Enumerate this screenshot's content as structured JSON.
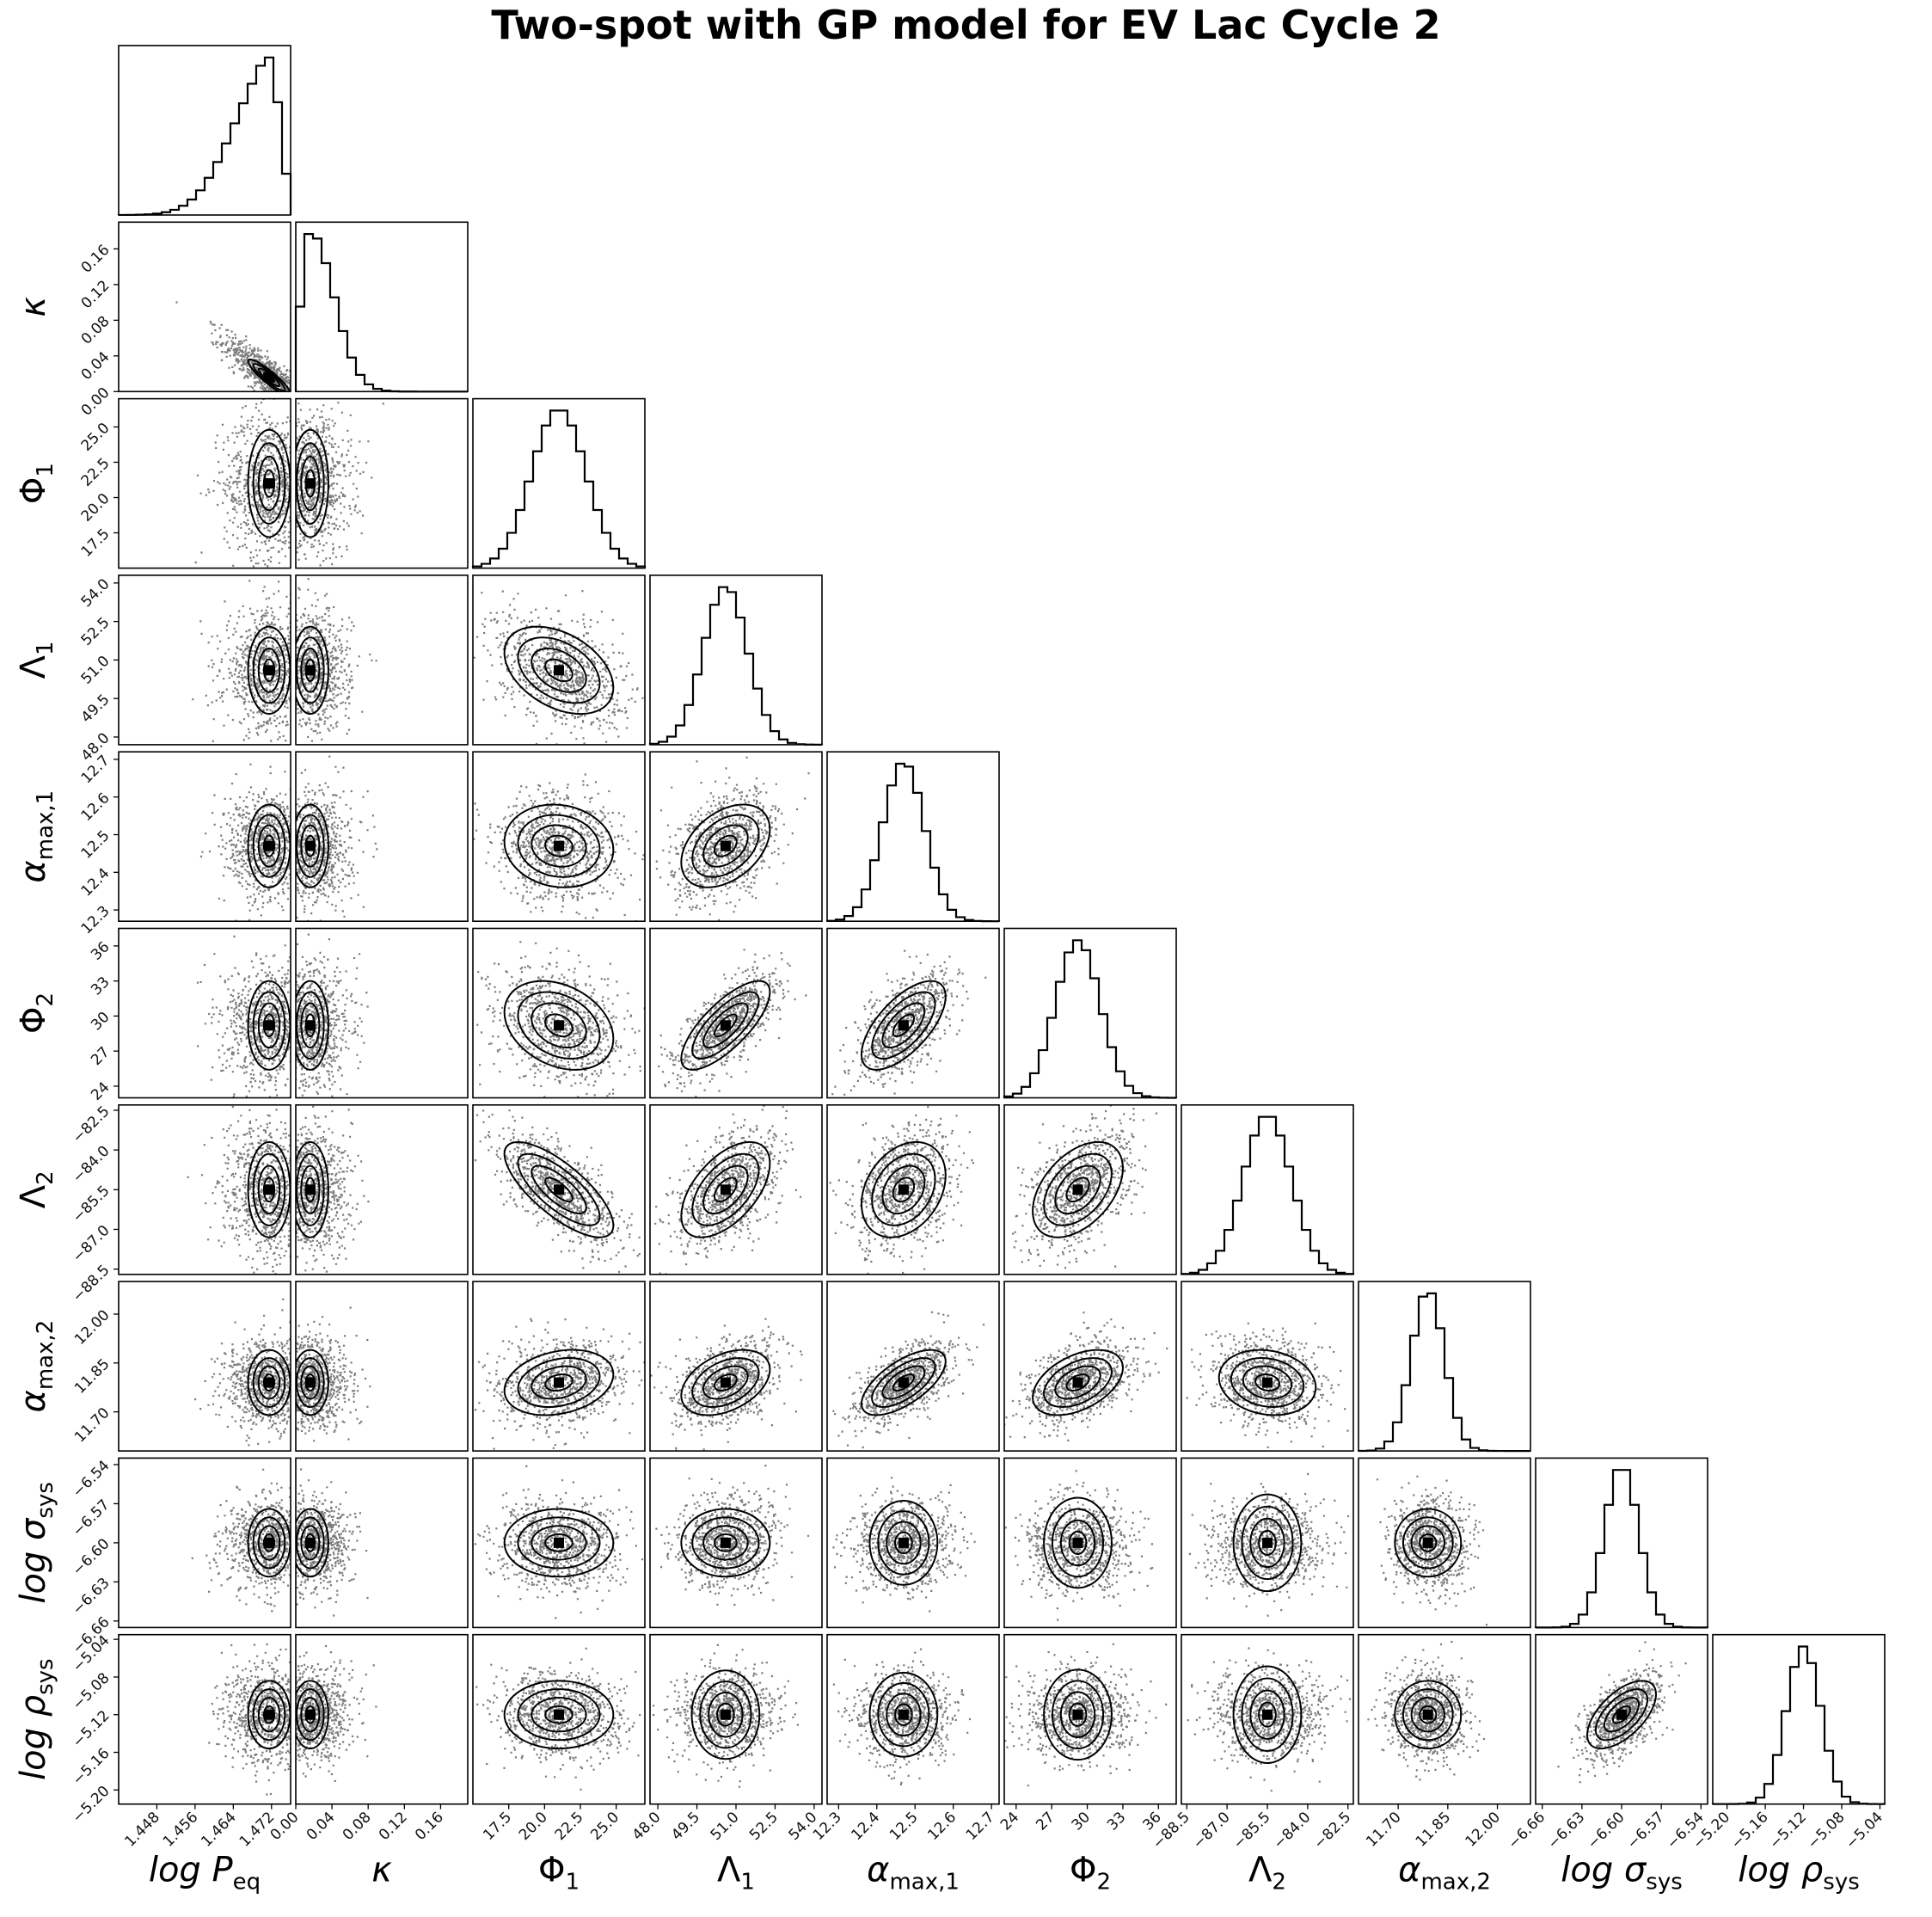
{
  "chart_data": {
    "type": "corner",
    "title": "Two-spot with GP model for EV Lac Cycle 2",
    "parameters": [
      {
        "key": "logPeq",
        "label": "log P_eq",
        "label_main": "log P",
        "label_sub": "eq",
        "italic_main": true,
        "range": [
          1.44,
          1.476
        ],
        "ticks": [
          "1.448",
          "1.456",
          "1.464",
          "1.472"
        ],
        "tick_values": [
          1.448,
          1.456,
          1.464,
          1.472
        ],
        "mean": 1.4715,
        "std": 0.0022,
        "skew": "left"
      },
      {
        "key": "kappa",
        "label": "κ",
        "label_main": "κ",
        "label_sub": "",
        "italic_main": true,
        "range": [
          0.0,
          0.19
        ],
        "ticks": [
          "0.00",
          "0.04",
          "0.08",
          "0.12",
          "0.16"
        ],
        "tick_values": [
          0.0,
          0.04,
          0.08,
          0.12,
          0.16
        ],
        "mean": 0.016,
        "std": 0.01,
        "skew": "right"
      },
      {
        "key": "Phi1",
        "label": "Φ_1",
        "label_main": "Φ",
        "label_sub": "1",
        "italic_main": false,
        "range": [
          15.0,
          27.0
        ],
        "ticks": [
          "17.5",
          "20.0",
          "22.5",
          "25.0"
        ],
        "tick_values": [
          17.5,
          20.0,
          22.5,
          25.0
        ],
        "mean": 21.0,
        "std": 1.9,
        "skew": "none"
      },
      {
        "key": "Lambda1",
        "label": "Λ_1",
        "label_main": "Λ",
        "label_sub": "1",
        "italic_main": false,
        "range": [
          47.7,
          54.3
        ],
        "ticks": [
          "48.0",
          "49.5",
          "51.0",
          "52.5",
          "54.0"
        ],
        "tick_values": [
          48.0,
          49.5,
          51.0,
          52.5,
          54.0
        ],
        "mean": 50.6,
        "std": 0.85,
        "skew": "none"
      },
      {
        "key": "alpha1",
        "label": "α_max,1",
        "label_main": "α",
        "label_sub": "max,1",
        "italic_main": true,
        "range": [
          12.27,
          12.72
        ],
        "ticks": [
          "12.3",
          "12.4",
          "12.5",
          "12.6",
          "12.7"
        ],
        "tick_values": [
          12.3,
          12.4,
          12.5,
          12.6,
          12.7
        ],
        "mean": 12.47,
        "std": 0.055,
        "skew": "none"
      },
      {
        "key": "Phi2",
        "label": "Φ_2",
        "label_main": "Φ",
        "label_sub": "2",
        "italic_main": false,
        "range": [
          23.0,
          37.5
        ],
        "ticks": [
          "24",
          "27",
          "30",
          "33",
          "36"
        ],
        "tick_values": [
          24,
          27,
          30,
          33,
          36
        ],
        "mean": 29.2,
        "std": 1.9,
        "skew": "none"
      },
      {
        "key": "Lambda2",
        "label": "Λ_2",
        "label_main": "Λ",
        "label_sub": "2",
        "italic_main": false,
        "range": [
          -88.7,
          -82.3
        ],
        "ticks": [
          "−88.5",
          "−87.0",
          "−85.5",
          "−84.0",
          "−82.5"
        ],
        "tick_values": [
          -88.5,
          -87.0,
          -85.5,
          -84.0,
          -82.5
        ],
        "mean": -85.5,
        "std": 0.9,
        "skew": "none"
      },
      {
        "key": "alpha2",
        "label": "α_max,2",
        "label_main": "α",
        "label_sub": "max,2",
        "italic_main": true,
        "range": [
          11.58,
          12.1
        ],
        "ticks": [
          "11.70",
          "11.85",
          "12.00"
        ],
        "tick_values": [
          11.7,
          11.85,
          12.0
        ],
        "mean": 11.79,
        "std": 0.05,
        "skew": "none"
      },
      {
        "key": "logsig",
        "label": "log σ_sys",
        "label_main": "log σ",
        "label_sub": "sys",
        "italic_main": true,
        "range": [
          -6.665,
          -6.535
        ],
        "ticks": [
          "−6.66",
          "−6.63",
          "−6.60",
          "−6.57",
          "−6.54"
        ],
        "tick_values": [
          -6.66,
          -6.63,
          -6.6,
          -6.57,
          -6.54
        ],
        "mean": -6.6,
        "std": 0.013,
        "skew": "none"
      },
      {
        "key": "logrho",
        "label": "log ρ_sys",
        "label_main": "log ρ",
        "label_sub": "sys",
        "italic_main": true,
        "range": [
          -5.215,
          -5.035
        ],
        "ticks": [
          "−5.20",
          "−5.16",
          "−5.12",
          "−5.08",
          "−5.04"
        ],
        "tick_values": [
          -5.2,
          -5.16,
          -5.12,
          -5.08,
          -5.04
        ],
        "mean": -5.12,
        "std": 0.018,
        "skew": "none"
      }
    ],
    "correlations": {
      "kappa|logPeq": -0.9,
      "Lambda1|Phi1": -0.4,
      "alpha1|Phi1": -0.1,
      "alpha1|Lambda1": 0.4,
      "Phi2|Phi1": -0.3,
      "Phi2|Lambda1": 0.75,
      "Phi2|alpha1": 0.65,
      "Lambda2|Phi1": -0.75,
      "Lambda2|Lambda1": 0.55,
      "Lambda2|alpha1": 0.3,
      "Lambda2|Phi2": 0.45,
      "alpha2|Phi1": 0.25,
      "alpha2|Lambda1": 0.4,
      "alpha2|alpha1": 0.65,
      "alpha2|Phi2": 0.45,
      "alpha2|Lambda2": -0.15,
      "logrho|logsig": 0.6
    }
  }
}
